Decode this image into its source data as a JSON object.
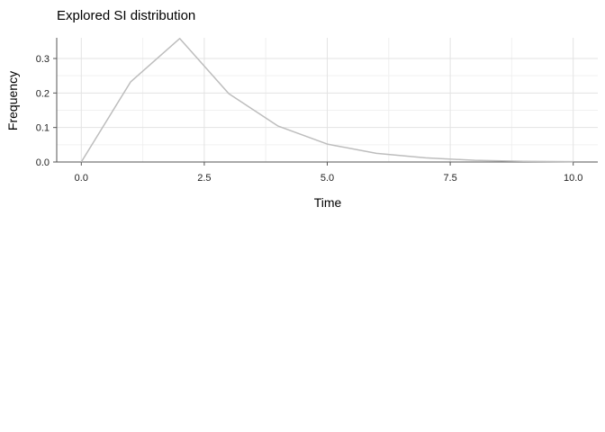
{
  "chart_data": {
    "type": "line",
    "title": "Explored SI distribution",
    "xlabel": "Time",
    "ylabel": "Frequency",
    "xlim": [
      -0.5,
      10.5
    ],
    "ylim": [
      0,
      0.36
    ],
    "x_ticks": [
      0,
      2.5,
      5,
      7.5,
      10
    ],
    "x_tick_labels": [
      "0.0",
      "2.5",
      "5.0",
      "7.5",
      "10.0"
    ],
    "y_ticks": [
      0,
      0.1,
      0.2,
      0.3
    ],
    "y_tick_labels": [
      "0.0",
      "0.1",
      "0.2",
      "0.3"
    ],
    "grid": true,
    "line_color": "#bdbdbd",
    "series": [
      {
        "x": [
          0,
          1,
          2,
          3,
          4,
          5,
          6,
          7,
          8,
          9,
          10
        ],
        "values": [
          0,
          0.232,
          0.358,
          0.198,
          0.104,
          0.052,
          0.025,
          0.012,
          0.005,
          0.002,
          0.001
        ]
      }
    ]
  }
}
